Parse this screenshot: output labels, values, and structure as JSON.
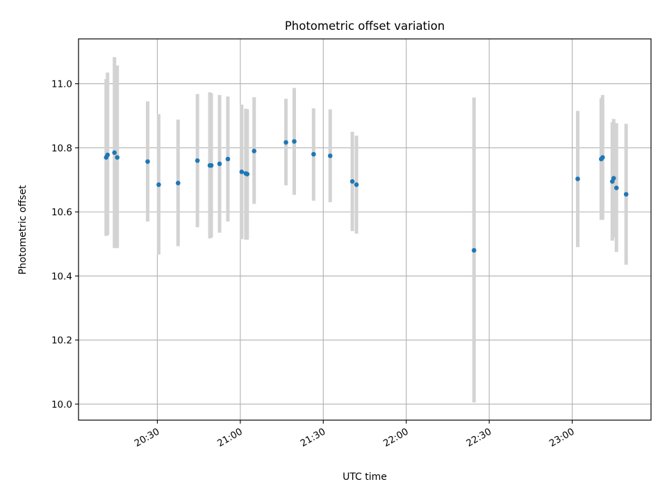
{
  "chart_data": {
    "type": "scatter",
    "title": "Photometric offset variation",
    "xlabel": "UTC time",
    "ylabel": "Photometric offset",
    "x_ticks": [
      "20:30",
      "21:00",
      "21:30",
      "22:00",
      "22:30",
      "23:00"
    ],
    "y_ticks": [
      "10.0",
      "10.2",
      "10.4",
      "10.6",
      "10.8",
      "11.0"
    ],
    "xlim": [
      "20:01:30",
      "23:28:30"
    ],
    "ylim": [
      9.95,
      11.14
    ],
    "grid": true,
    "point_color": "#1f77b4",
    "errorbar_color": "#d3d3d3",
    "series": [
      {
        "points": [
          {
            "x": "20:11:30",
            "y": 10.77,
            "low": 10.525,
            "high": 11.015
          },
          {
            "x": "20:12:00",
            "y": 10.778,
            "low": 10.528,
            "high": 11.035
          },
          {
            "x": "20:14:30",
            "y": 10.785,
            "low": 10.487,
            "high": 11.083
          },
          {
            "x": "20:15:30",
            "y": 10.77,
            "low": 10.487,
            "high": 11.057
          },
          {
            "x": "20:26:30",
            "y": 10.757,
            "low": 10.57,
            "high": 10.945
          },
          {
            "x": "20:30:30",
            "y": 10.685,
            "low": 10.467,
            "high": 10.905
          },
          {
            "x": "20:37:30",
            "y": 10.69,
            "low": 10.493,
            "high": 10.888
          },
          {
            "x": "20:44:30",
            "y": 10.76,
            "low": 10.552,
            "high": 10.968
          },
          {
            "x": "20:49:00",
            "y": 10.745,
            "low": 10.517,
            "high": 10.973
          },
          {
            "x": "20:49:30",
            "y": 10.745,
            "low": 10.52,
            "high": 10.97
          },
          {
            "x": "20:52:30",
            "y": 10.75,
            "low": 10.535,
            "high": 10.965
          },
          {
            "x": "20:55:30",
            "y": 10.765,
            "low": 10.57,
            "high": 10.96
          },
          {
            "x": "21:00:30",
            "y": 10.725,
            "low": 10.515,
            "high": 10.935
          },
          {
            "x": "21:02:00",
            "y": 10.72,
            "low": 10.513,
            "high": 10.922
          },
          {
            "x": "21:02:30",
            "y": 10.718,
            "low": 10.513,
            "high": 10.92
          },
          {
            "x": "21:05:00",
            "y": 10.79,
            "low": 10.625,
            "high": 10.958
          },
          {
            "x": "21:16:30",
            "y": 10.817,
            "low": 10.683,
            "high": 10.953
          },
          {
            "x": "21:19:30",
            "y": 10.82,
            "low": 10.653,
            "high": 10.987
          },
          {
            "x": "21:26:30",
            "y": 10.78,
            "low": 10.635,
            "high": 10.923
          },
          {
            "x": "21:32:30",
            "y": 10.775,
            "low": 10.63,
            "high": 10.92
          },
          {
            "x": "21:40:30",
            "y": 10.695,
            "low": 10.54,
            "high": 10.85
          },
          {
            "x": "21:42:00",
            "y": 10.685,
            "low": 10.532,
            "high": 10.838
          },
          {
            "x": "22:24:30",
            "y": 10.48,
            "low": 10.005,
            "high": 10.957
          },
          {
            "x": "23:02:00",
            "y": 10.703,
            "low": 10.49,
            "high": 10.915
          },
          {
            "x": "23:10:30",
            "y": 10.765,
            "low": 10.575,
            "high": 10.955
          },
          {
            "x": "23:11:00",
            "y": 10.77,
            "low": 10.575,
            "high": 10.965
          },
          {
            "x": "23:14:30",
            "y": 10.695,
            "low": 10.51,
            "high": 10.88
          },
          {
            "x": "23:15:00",
            "y": 10.705,
            "low": 10.52,
            "high": 10.89
          },
          {
            "x": "23:16:00",
            "y": 10.675,
            "low": 10.475,
            "high": 10.877
          },
          {
            "x": "23:19:30",
            "y": 10.655,
            "low": 10.435,
            "high": 10.875
          }
        ]
      }
    ]
  }
}
